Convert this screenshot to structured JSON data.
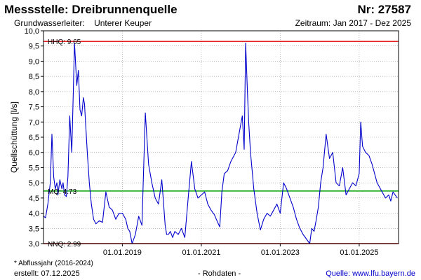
{
  "header": {
    "title": "Messstelle: Dreibrunnenquelle",
    "number": "Nr: 27587",
    "aquifer_label": "Grundwasserleiter:",
    "aquifer_value": "Unterer Keuper",
    "period": "Zeitraum: Jan 2017 - Dez 2025"
  },
  "footer": {
    "note": "* Abflussjahr (2016-2024)",
    "created": "erstellt:  07.12.2025",
    "raw": "- Rohdaten -",
    "source": "Quelle: www.lfu.bayern.de"
  },
  "colors": {
    "series": "#0000cc",
    "hhq": "#e00000",
    "mq": "#00a000",
    "nnq": "#e00000",
    "grid": "#999999",
    "frame": "#000000"
  },
  "chart_data": {
    "type": "line",
    "ylabel": "Quellschüttung [l/s]",
    "ylim": [
      3.0,
      10.0
    ],
    "yticks": [
      "3,0",
      "3,5",
      "4,0",
      "4,5",
      "5,0",
      "5,5",
      "6,0",
      "6,5",
      "7,0",
      "7,5",
      "8,0",
      "8,5",
      "9,0",
      "9,5",
      "10,0"
    ],
    "xlim": [
      "2017-01-01",
      "2025-12-31"
    ],
    "xticks": [
      {
        "date": "2019-01-01",
        "label": "01.01.2019"
      },
      {
        "date": "2021-01-01",
        "label": "01.01.2021"
      },
      {
        "date": "2023-01-01",
        "label": "01.01.2023"
      },
      {
        "date": "2025-01-01",
        "label": "01.01.2025"
      }
    ],
    "grid": true,
    "reference_lines": [
      {
        "name": "HHQ",
        "label": "HHQ: 9.65",
        "value": 9.65
      },
      {
        "name": "MQ",
        "label": "MQ: 4.73",
        "value": 4.73
      },
      {
        "name": "NNQ",
        "label": "NNQ: 2.99",
        "value": 2.99
      }
    ],
    "series": [
      {
        "x": [
          "2017-01-01",
          "2017-01-20",
          "2017-02-10",
          "2017-03-05",
          "2017-03-20",
          "2017-04-05",
          "2017-04-20",
          "2017-05-05",
          "2017-05-15",
          "2017-06-01",
          "2017-06-20",
          "2017-07-01",
          "2017-07-15",
          "2017-08-01",
          "2017-08-15",
          "2017-09-01",
          "2017-09-20",
          "2017-10-15",
          "2017-11-05",
          "2017-11-20",
          "2017-12-05",
          "2017-12-20",
          "2018-01-05",
          "2018-01-15",
          "2018-01-25",
          "2018-02-10",
          "2018-03-01",
          "2018-03-20",
          "2018-04-10",
          "2018-05-01",
          "2018-06-01",
          "2018-07-01",
          "2018-08-01",
          "2018-09-01",
          "2018-10-01",
          "2018-11-01",
          "2018-12-01",
          "2019-01-01",
          "2019-02-01",
          "2019-02-20",
          "2019-03-10",
          "2019-04-01",
          "2019-05-01",
          "2019-06-01",
          "2019-07-01",
          "2019-08-01",
          "2019-09-01",
          "2019-10-01",
          "2019-11-01",
          "2019-12-01",
          "2020-01-01",
          "2020-02-01",
          "2020-02-15",
          "2020-03-01",
          "2020-03-20",
          "2020-04-10",
          "2020-05-01",
          "2020-06-01",
          "2020-07-01",
          "2020-08-01",
          "2020-09-01",
          "2020-10-01",
          "2020-11-01",
          "2020-12-01",
          "2021-01-01",
          "2021-02-01",
          "2021-03-01",
          "2021-04-01",
          "2021-05-01",
          "2021-06-01",
          "2021-06-20",
          "2021-07-10",
          "2021-08-01",
          "2021-09-01",
          "2021-10-01",
          "2021-11-15",
          "2022-01-15",
          "2022-02-01",
          "2022-02-15",
          "2022-03-01",
          "2022-03-15",
          "2022-04-01",
          "2022-05-01",
          "2022-06-01",
          "2022-07-01",
          "2022-08-01",
          "2022-09-01",
          "2022-10-01",
          "2022-11-01",
          "2022-12-01",
          "2023-01-01",
          "2023-02-01",
          "2023-03-01",
          "2023-04-01",
          "2023-05-01",
          "2023-06-01",
          "2023-07-01",
          "2023-08-01",
          "2023-09-01",
          "2023-10-01",
          "2023-10-20",
          "2023-11-10",
          "2023-12-01",
          "2023-12-20",
          "2024-01-10",
          "2024-02-01",
          "2024-03-01",
          "2024-04-01",
          "2024-05-01",
          "2024-06-01",
          "2024-07-01",
          "2024-08-01",
          "2024-09-01",
          "2024-10-01",
          "2024-11-01",
          "2024-12-01",
          "2025-01-01",
          "2025-01-15",
          "2025-02-01",
          "2025-03-01",
          "2025-04-01",
          "2025-05-01",
          "2025-06-15",
          "2025-09-01",
          "2025-10-01",
          "2025-10-20",
          "2025-11-10",
          "2025-12-20"
        ],
        "y": [
          3.9,
          3.85,
          4.3,
          5.0,
          6.6,
          5.2,
          4.8,
          5.0,
          4.6,
          5.1,
          4.8,
          5.0,
          4.6,
          4.55,
          5.2,
          7.2,
          6.0,
          9.6,
          8.2,
          8.7,
          7.4,
          7.2,
          7.8,
          7.6,
          7.0,
          6.0,
          5.0,
          4.3,
          3.8,
          3.65,
          3.75,
          3.7,
          4.7,
          4.2,
          4.1,
          3.8,
          4.0,
          4.0,
          3.8,
          3.5,
          3.4,
          3.0,
          3.3,
          3.9,
          3.6,
          7.3,
          5.6,
          5.0,
          4.5,
          4.3,
          5.1,
          3.6,
          3.3,
          3.3,
          3.4,
          3.2,
          3.4,
          3.3,
          3.5,
          3.2,
          4.5,
          5.7,
          4.8,
          4.5,
          4.6,
          4.7,
          4.3,
          4.1,
          3.95,
          3.7,
          3.55,
          4.7,
          5.3,
          5.4,
          5.7,
          6.0,
          7.2,
          6.1,
          9.6,
          8.2,
          7.0,
          6.0,
          4.8,
          4.0,
          3.45,
          3.8,
          4.0,
          3.9,
          4.1,
          4.3,
          4.0,
          5.0,
          4.8,
          4.5,
          4.2,
          3.8,
          3.5,
          3.3,
          3.15,
          3.0,
          3.5,
          3.4,
          3.8,
          4.2,
          5.0,
          5.5,
          6.6,
          5.8,
          6.0,
          5.0,
          4.9,
          5.5,
          4.6,
          4.8,
          5.0,
          4.9,
          5.3,
          7.0,
          6.2,
          6.0,
          5.9,
          5.6,
          5.0,
          4.5,
          4.6,
          4.4,
          4.7,
          4.5
        ]
      }
    ]
  }
}
